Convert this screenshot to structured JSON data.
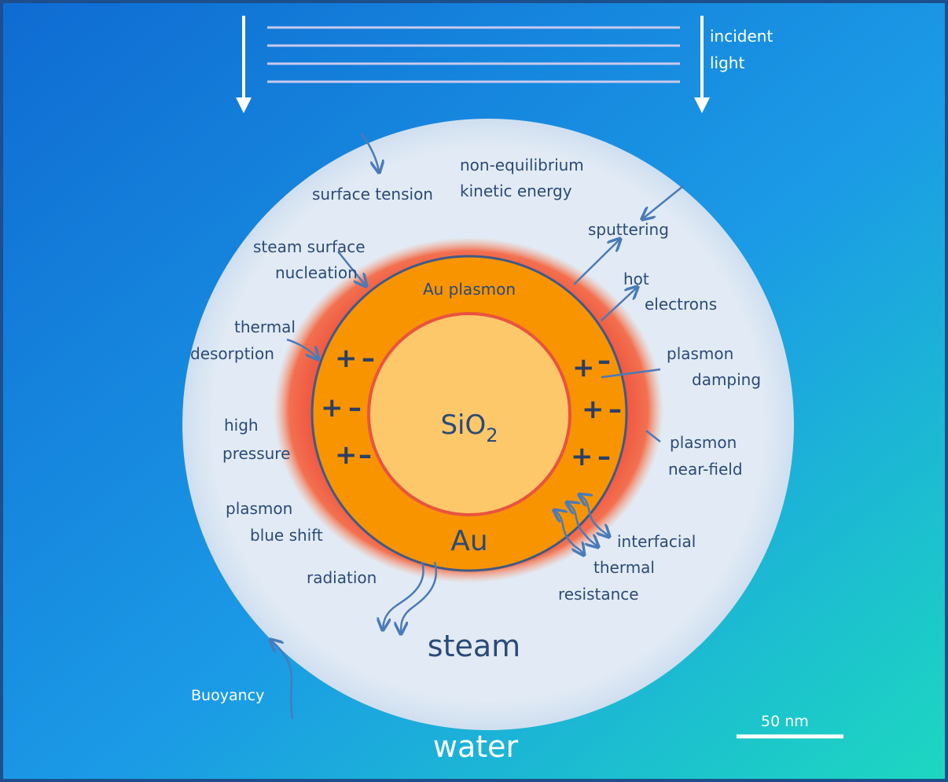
{
  "labels": {
    "incident_light": [
      "incident",
      "light"
    ],
    "kinetic_energy": [
      "non-equilibrium",
      "kinetic energy"
    ],
    "surface_tension": [
      "surface tension"
    ],
    "sputtering": [
      "sputtering"
    ],
    "nucleation": [
      "steam surface",
      "nucleation"
    ],
    "au_plasmon": [
      "Au plasmon"
    ],
    "hot_electrons": [
      "hot",
      "electrons"
    ],
    "thermal_desorption": [
      "thermal",
      "desorption"
    ],
    "plasmon_damping": [
      "plasmon",
      "damping"
    ],
    "high_pressure": [
      "high",
      "pressure"
    ],
    "core": {
      "text": "SiO",
      "subscript": "2"
    },
    "near_field": [
      "plasmon",
      "near-field"
    ],
    "blue_shift": [
      "plasmon",
      "blue shift"
    ],
    "shell": [
      "Au"
    ],
    "interfacial": [
      "interfacial",
      "thermal",
      "resistance"
    ],
    "radiation": [
      "radiation"
    ],
    "steam": [
      "steam"
    ],
    "buoyancy": [
      "Buoyancy"
    ],
    "scale_bar": [
      "50 nm"
    ],
    "water": [
      "water"
    ]
  },
  "charges": {
    "plus": "+",
    "minus": "–"
  }
}
